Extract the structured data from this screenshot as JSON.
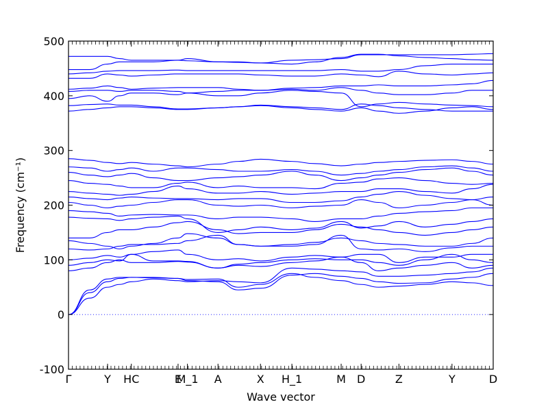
{
  "chart_data": {
    "type": "line",
    "xlabel": "Wave vector",
    "ylabel": "Frequency (cm⁻¹)",
    "ylim": [
      -100,
      500
    ],
    "yticks": [
      -100,
      0,
      100,
      200,
      300,
      400,
      500
    ],
    "xlim": [
      0,
      1
    ],
    "x_tick_labels": [
      {
        "label": "Γ",
        "x": 0.0
      },
      {
        "label": "Y",
        "x": 0.092
      },
      {
        "label": "HC",
        "x": 0.148
      },
      {
        "label": "E",
        "x": 0.258
      },
      {
        "label": "M_1",
        "x": 0.28
      },
      {
        "label": "A",
        "x": 0.352
      },
      {
        "label": "X",
        "x": 0.452
      },
      {
        "label": "H_1",
        "x": 0.526
      },
      {
        "label": "M",
        "x": 0.642
      },
      {
        "label": "D",
        "x": 0.689
      },
      {
        "label": "Z",
        "x": 0.778
      },
      {
        "label": "Y",
        "x": 0.903
      },
      {
        "label": "D",
        "x": 1.0
      }
    ],
    "grid": false,
    "zero_line": true,
    "series_color": "#0000ff",
    "x": [
      0.0,
      0.05,
      0.092,
      0.12,
      0.148,
      0.2,
      0.258,
      0.28,
      0.352,
      0.4,
      0.452,
      0.526,
      0.58,
      0.642,
      0.689,
      0.73,
      0.778,
      0.84,
      0.903,
      0.95,
      1.0
    ],
    "series": [
      {
        "values": [
          0,
          45,
          65,
          68,
          68,
          67,
          66,
          64,
          65,
          50,
          55,
          75,
          68,
          62,
          55,
          50,
          52,
          55,
          60,
          58,
          53
        ]
      },
      {
        "values": [
          0,
          40,
          60,
          66,
          68,
          68,
          66,
          62,
          60,
          45,
          48,
          72,
          75,
          70,
          66,
          60,
          57,
          58,
          65,
          68,
          75
        ]
      },
      {
        "values": [
          0,
          30,
          50,
          55,
          60,
          65,
          62,
          60,
          62,
          60,
          58,
          85,
          83,
          80,
          78,
          70,
          70,
          72,
          75,
          78,
          85
        ]
      },
      {
        "values": [
          80,
          85,
          95,
          100,
          95,
          95,
          97,
          96,
          85,
          90,
          88,
          95,
          98,
          105,
          95,
          80,
          85,
          90,
          95,
          85,
          90
        ]
      },
      {
        "values": [
          90,
          95,
          100,
          98,
          110,
          98,
          98,
          97,
          85,
          92,
          95,
          100,
          102,
          100,
          100,
          95,
          90,
          100,
          110,
          100,
          95
        ]
      },
      {
        "values": [
          100,
          103,
          108,
          105,
          110,
          115,
          118,
          110,
          100,
          102,
          98,
          105,
          108,
          105,
          110,
          110,
          95,
          105,
          105,
          110,
          110
        ]
      },
      {
        "values": [
          120,
          118,
          120,
          125,
          128,
          128,
          130,
          135,
          145,
          128,
          125,
          125,
          128,
          145,
          120,
          118,
          120,
          115,
          122,
          125,
          125
        ]
      },
      {
        "values": [
          135,
          130,
          125,
          120,
          125,
          130,
          140,
          148,
          140,
          128,
          125,
          128,
          132,
          140,
          135,
          130,
          128,
          125,
          125,
          130,
          140
        ]
      },
      {
        "values": [
          140,
          140,
          150,
          155,
          155,
          160,
          168,
          170,
          155,
          148,
          150,
          150,
          155,
          165,
          160,
          155,
          150,
          145,
          150,
          155,
          160
        ]
      },
      {
        "values": [
          178,
          176,
          175,
          172,
          175,
          178,
          180,
          175,
          150,
          155,
          160,
          155,
          158,
          170,
          158,
          162,
          170,
          160,
          165,
          170,
          175
        ]
      },
      {
        "values": [
          190,
          188,
          185,
          180,
          182,
          183,
          182,
          182,
          175,
          178,
          178,
          175,
          170,
          175,
          175,
          180,
          185,
          188,
          190,
          195,
          195
        ]
      },
      {
        "values": [
          205,
          200,
          195,
          198,
          200,
          205,
          210,
          210,
          200,
          198,
          200,
          195,
          198,
          200,
          210,
          205,
          195,
          200,
          205,
          210,
          200
        ]
      },
      {
        "values": [
          215,
          212,
          210,
          213,
          215,
          213,
          212,
          212,
          210,
          212,
          212,
          205,
          205,
          208,
          215,
          220,
          225,
          218,
          212,
          210,
          215
        ]
      },
      {
        "values": [
          225,
          222,
          220,
          218,
          220,
          225,
          235,
          230,
          222,
          222,
          225,
          220,
          222,
          225,
          225,
          230,
          230,
          225,
          222,
          230,
          238
        ]
      },
      {
        "values": [
          245,
          240,
          238,
          235,
          232,
          232,
          240,
          242,
          232,
          235,
          232,
          232,
          230,
          240,
          242,
          248,
          250,
          245,
          240,
          238,
          240
        ]
      },
      {
        "values": [
          260,
          255,
          252,
          255,
          258,
          250,
          245,
          245,
          250,
          252,
          255,
          262,
          255,
          245,
          250,
          255,
          260,
          265,
          268,
          262,
          255
        ]
      },
      {
        "values": [
          270,
          268,
          262,
          265,
          268,
          262,
          268,
          268,
          265,
          262,
          262,
          265,
          262,
          255,
          258,
          262,
          265,
          270,
          272,
          268,
          262
        ]
      },
      {
        "values": [
          285,
          282,
          278,
          276,
          278,
          275,
          272,
          270,
          275,
          280,
          284,
          280,
          276,
          272,
          275,
          278,
          280,
          282,
          283,
          280,
          275
        ]
      },
      {
        "values": [
          372,
          375,
          378,
          380,
          380,
          378,
          375,
          375,
          378,
          380,
          382,
          378,
          375,
          372,
          378,
          372,
          368,
          372,
          378,
          380,
          375
        ]
      },
      {
        "values": [
          382,
          384,
          385,
          383,
          383,
          380,
          376,
          376,
          378,
          380,
          383,
          380,
          378,
          375,
          385,
          382,
          378,
          375,
          372,
          372,
          372
        ]
      },
      {
        "values": [
          395,
          400,
          390,
          400,
          405,
          405,
          402,
          405,
          400,
          400,
          405,
          410,
          408,
          405,
          380,
          385,
          388,
          385,
          383,
          382,
          380
        ]
      },
      {
        "values": [
          408,
          410,
          410,
          408,
          410,
          410,
          408,
          405,
          408,
          410,
          410,
          412,
          410,
          415,
          410,
          405,
          402,
          402,
          405,
          410,
          410
        ]
      },
      {
        "values": [
          412,
          414,
          418,
          415,
          412,
          414,
          415,
          415,
          415,
          412,
          410,
          414,
          415,
          418,
          418,
          420,
          418,
          418,
          420,
          422,
          428
        ]
      },
      {
        "values": [
          432,
          432,
          440,
          438,
          436,
          438,
          440,
          440,
          440,
          440,
          438,
          436,
          436,
          440,
          438,
          435,
          445,
          440,
          438,
          440,
          442
        ]
      },
      {
        "values": [
          440,
          442,
          445,
          446,
          446,
          446,
          447,
          446,
          446,
          446,
          446,
          446,
          446,
          448,
          445,
          445,
          448,
          455,
          458,
          458,
          458
        ]
      },
      {
        "values": [
          448,
          448,
          458,
          462,
          462,
          462,
          465,
          468,
          462,
          462,
          460,
          465,
          466,
          468,
          475,
          475,
          475,
          475,
          475,
          476,
          477
        ]
      },
      {
        "values": [
          472,
          472,
          472,
          468,
          465,
          465,
          465,
          464,
          462,
          461,
          460,
          458,
          462,
          470,
          476,
          476,
          473,
          470,
          468,
          466,
          465
        ]
      }
    ]
  }
}
